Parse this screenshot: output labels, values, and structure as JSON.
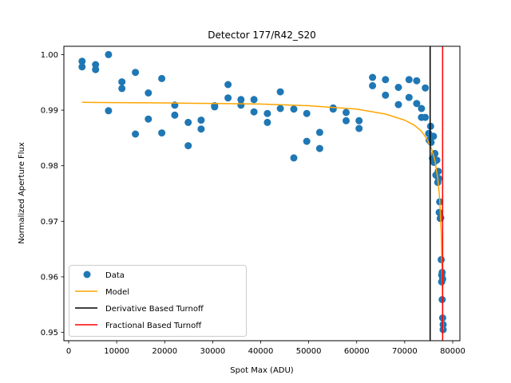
{
  "chart_data": {
    "type": "scatter",
    "title": "Detector 177/R42_S20",
    "xlabel": "Spot Max (ADU)",
    "ylabel": "Normalized Aperture Flux",
    "xlim": [
      -1000,
      81500
    ],
    "ylim": [
      0.9485,
      1.0015
    ],
    "xticks": [
      0,
      10000,
      20000,
      30000,
      40000,
      50000,
      60000,
      70000,
      80000
    ],
    "xtick_labels": [
      "0",
      "10000",
      "20000",
      "30000",
      "40000",
      "50000",
      "60000",
      "70000",
      "80000"
    ],
    "yticks": [
      0.95,
      0.96,
      0.97,
      0.98,
      0.99,
      1.0
    ],
    "ytick_labels": [
      "0.95",
      "0.96",
      "0.97",
      "0.98",
      "0.99",
      "1.00"
    ],
    "grid": false,
    "legend_position": "lower-left",
    "colors": {
      "data": "#1f77b4",
      "model": "#ffa500",
      "derivative_turnoff": "#000000",
      "fractional_turnoff": "#ff0000"
    },
    "series": [
      {
        "name": "Data",
        "kind": "scatter",
        "points": [
          [
            2800,
            0.9988
          ],
          [
            2800,
            0.9978
          ],
          [
            5600,
            0.9982
          ],
          [
            5600,
            0.9973
          ],
          [
            8300,
            1.0
          ],
          [
            8300,
            0.9899
          ],
          [
            11100,
            0.9951
          ],
          [
            11100,
            0.9939
          ],
          [
            13900,
            0.9968
          ],
          [
            13900,
            0.9857
          ],
          [
            16600,
            0.9931
          ],
          [
            16600,
            0.9884
          ],
          [
            19400,
            0.9957
          ],
          [
            19400,
            0.9859
          ],
          [
            22100,
            0.9909
          ],
          [
            22100,
            0.9891
          ],
          [
            24900,
            0.9878
          ],
          [
            24900,
            0.9836
          ],
          [
            27600,
            0.9882
          ],
          [
            27600,
            0.9866
          ],
          [
            30400,
            0.9908
          ],
          [
            30400,
            0.9906
          ],
          [
            33200,
            0.9946
          ],
          [
            33200,
            0.9922
          ],
          [
            35900,
            0.9919
          ],
          [
            35900,
            0.9909
          ],
          [
            38600,
            0.9919
          ],
          [
            38600,
            0.9897
          ],
          [
            41400,
            0.9894
          ],
          [
            41400,
            0.9878
          ],
          [
            44100,
            0.9933
          ],
          [
            44100,
            0.9903
          ],
          [
            46900,
            0.9902
          ],
          [
            46900,
            0.9814
          ],
          [
            49600,
            0.9894
          ],
          [
            49600,
            0.9844
          ],
          [
            52300,
            0.986
          ],
          [
            52300,
            0.9831
          ],
          [
            55100,
            0.9904
          ],
          [
            55100,
            0.9902
          ],
          [
            57800,
            0.9896
          ],
          [
            57800,
            0.9881
          ],
          [
            60500,
            0.9881
          ],
          [
            60500,
            0.9867
          ],
          [
            63300,
            0.9959
          ],
          [
            63300,
            0.9944
          ],
          [
            66000,
            0.9955
          ],
          [
            66000,
            0.9927
          ],
          [
            68700,
            0.9941
          ],
          [
            68700,
            0.991
          ],
          [
            70900,
            0.9955
          ],
          [
            70900,
            0.9923
          ],
          [
            72500,
            0.9953
          ],
          [
            72500,
            0.9912
          ],
          [
            73500,
            0.9903
          ],
          [
            73500,
            0.9887
          ],
          [
            74300,
            0.994
          ],
          [
            74300,
            0.9887
          ],
          [
            75000,
            0.9858
          ],
          [
            75100,
            0.9846
          ],
          [
            75400,
            0.9871
          ],
          [
            75500,
            0.9842
          ],
          [
            75800,
            0.9813
          ],
          [
            76000,
            0.9853
          ],
          [
            76100,
            0.9806
          ],
          [
            76300,
            0.9822
          ],
          [
            76500,
            0.9783
          ],
          [
            76700,
            0.981
          ],
          [
            76900,
            0.977
          ],
          [
            77000,
            0.979
          ],
          [
            77100,
            0.9777
          ],
          [
            77200,
            0.9716
          ],
          [
            77300,
            0.9735
          ],
          [
            77400,
            0.9705
          ],
          [
            77500,
            0.9706
          ],
          [
            77600,
            0.9631
          ],
          [
            77700,
            0.9591
          ],
          [
            77700,
            0.9603
          ],
          [
            77800,
            0.9608
          ],
          [
            77800,
            0.9559
          ],
          [
            77900,
            0.9596
          ],
          [
            77900,
            0.9526
          ],
          [
            78000,
            0.9514
          ],
          [
            78000,
            0.9505
          ]
        ]
      },
      {
        "name": "Model",
        "kind": "line",
        "points": [
          [
            2800,
            0.9914
          ],
          [
            20000,
            0.9913
          ],
          [
            40000,
            0.9911
          ],
          [
            50000,
            0.9908
          ],
          [
            60000,
            0.9902
          ],
          [
            66000,
            0.9893
          ],
          [
            70000,
            0.9882
          ],
          [
            72000,
            0.9873
          ],
          [
            73500,
            0.9862
          ],
          [
            74500,
            0.985
          ],
          [
            75500,
            0.9833
          ],
          [
            76300,
            0.981
          ],
          [
            76900,
            0.9777
          ],
          [
            77300,
            0.974
          ],
          [
            77600,
            0.968
          ],
          [
            77800,
            0.96
          ],
          [
            77950,
            0.952
          ],
          [
            78000,
            0.9505
          ]
        ]
      },
      {
        "name": "Derivative Based Turnoff",
        "kind": "vline",
        "x": 75300
      },
      {
        "name": "Fractional Based Turnoff",
        "kind": "vline",
        "x": 77900
      }
    ]
  }
}
